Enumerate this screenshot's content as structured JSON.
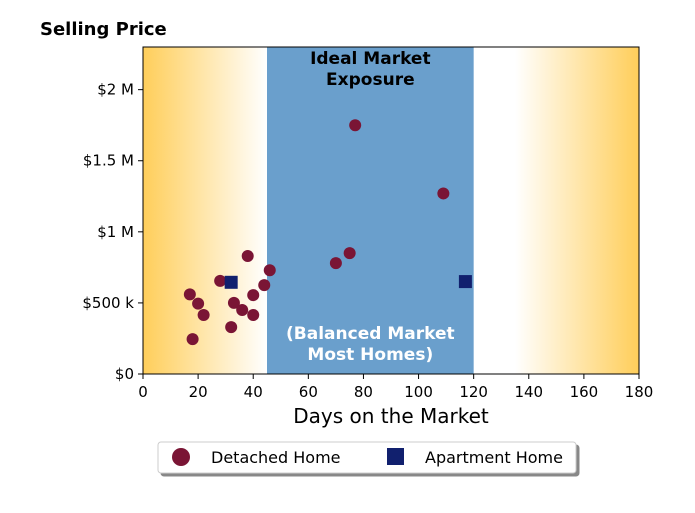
{
  "chart_data": {
    "type": "scatter",
    "title": "Selling Price",
    "xlabel": "Days on the Market",
    "ylabel": "",
    "xlim": [
      0,
      180
    ],
    "ylim": [
      0,
      2300000
    ],
    "xticks": [
      0,
      20,
      40,
      60,
      80,
      100,
      120,
      140,
      160,
      180
    ],
    "xtick_labels": [
      "0",
      "20",
      "40",
      "60",
      "80",
      "100",
      "120",
      "140",
      "160",
      "180"
    ],
    "yticks": [
      0,
      500000,
      1000000,
      1500000,
      2000000
    ],
    "ytick_labels": [
      "$0",
      "$500 k",
      "$1 M",
      "$1.5 M",
      "$2 M"
    ],
    "grid": false,
    "legend_position": "bottom-center",
    "regions": [
      {
        "x_start": 45,
        "x_end": 120,
        "color": "#6a9fcc",
        "label_top": "Ideal Market\nExposure",
        "label_bottom": "(Balanced Market\nMost Homes)"
      }
    ],
    "background_gradient": {
      "edge_color": "#ffce5a",
      "center_color": "#ffffff"
    },
    "series": [
      {
        "name": "Detached Home",
        "marker": "circle",
        "color": "#7a1535",
        "points": [
          {
            "x": 17,
            "y": 560000
          },
          {
            "x": 18,
            "y": 245000
          },
          {
            "x": 20,
            "y": 495000
          },
          {
            "x": 22,
            "y": 415000
          },
          {
            "x": 28,
            "y": 655000
          },
          {
            "x": 32,
            "y": 330000
          },
          {
            "x": 33,
            "y": 500000
          },
          {
            "x": 36,
            "y": 450000
          },
          {
            "x": 38,
            "y": 830000
          },
          {
            "x": 40,
            "y": 555000
          },
          {
            "x": 40,
            "y": 415000
          },
          {
            "x": 44,
            "y": 625000
          },
          {
            "x": 46,
            "y": 730000
          },
          {
            "x": 70,
            "y": 780000
          },
          {
            "x": 75,
            "y": 850000
          },
          {
            "x": 77,
            "y": 1750000
          },
          {
            "x": 109,
            "y": 1270000
          }
        ]
      },
      {
        "name": "Apartment Home",
        "marker": "square",
        "color": "#11206e",
        "points": [
          {
            "x": 32,
            "y": 645000
          },
          {
            "x": 117,
            "y": 650000
          }
        ]
      }
    ]
  }
}
